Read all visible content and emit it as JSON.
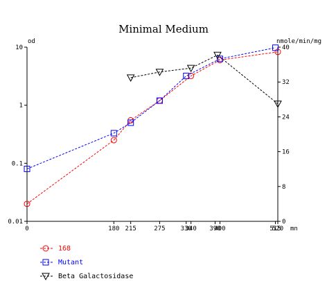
{
  "chart_data": {
    "type": "line",
    "title": "Minimal Medium",
    "y_left_label": "od",
    "y_right_label": "nmole/min/mg",
    "x_unit_label": "mn",
    "x_ticks": [
      0,
      180,
      215,
      275,
      330,
      340,
      390,
      400,
      515,
      520
    ],
    "x_tick_labels": [
      "0",
      "180",
      "215",
      "275",
      "330",
      "340",
      "390",
      "400",
      "515",
      "520"
    ],
    "xlim": [
      0,
      520
    ],
    "y_left_scale": "log",
    "y_left_ticks": [
      0.01,
      0.1,
      1,
      10
    ],
    "y_left_tick_labels": [
      "0.01",
      "0.1",
      "1",
      "10"
    ],
    "ylim_left": [
      0.01,
      10
    ],
    "y_right_ticks": [
      0,
      8,
      16,
      24,
      32,
      40
    ],
    "ylim_right": [
      0,
      40
    ],
    "grid": false,
    "legend_position": "bottom-left",
    "series": [
      {
        "name": "168",
        "axis": "left",
        "marker": "circle",
        "color": "#ff0000",
        "x": [
          0,
          180,
          215,
          275,
          340,
          400,
          520
        ],
        "y": [
          0.02,
          0.25,
          0.55,
          1.2,
          3.2,
          6.0,
          8.3
        ]
      },
      {
        "name": "Mutant",
        "axis": "left",
        "marker": "square",
        "color": "#0000ff",
        "x": [
          0,
          180,
          215,
          275,
          330,
          400,
          515
        ],
        "y": [
          0.08,
          0.33,
          0.5,
          1.2,
          3.2,
          6.3,
          9.8
        ]
      },
      {
        "name": "Beta Galactosidase",
        "axis": "right",
        "marker": "triangle-down",
        "color": "#000000",
        "x": [
          215,
          275,
          340,
          395,
          520
        ],
        "y": [
          33,
          34.3,
          35.2,
          38.2,
          27
        ]
      }
    ]
  }
}
